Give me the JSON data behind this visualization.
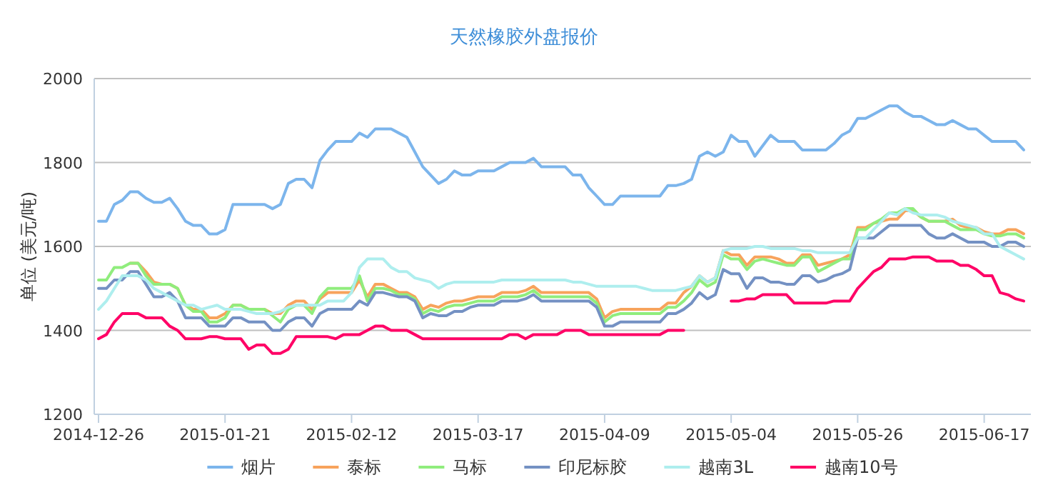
{
  "chart_data": {
    "type": "line",
    "title": "天然橡胶外盘报价",
    "ylabel": "单位 (美元/吨)",
    "categories": [
      "2014-12-26",
      null,
      null,
      null,
      null,
      null,
      null,
      null,
      null,
      null,
      null,
      null,
      null,
      null,
      null,
      null,
      "2015-01-21",
      null,
      null,
      null,
      null,
      null,
      null,
      null,
      null,
      null,
      null,
      null,
      null,
      null,
      null,
      null,
      "2015-02-12",
      null,
      null,
      null,
      null,
      null,
      null,
      null,
      null,
      null,
      null,
      null,
      null,
      null,
      null,
      null,
      "2015-03-17",
      null,
      null,
      null,
      null,
      null,
      null,
      null,
      null,
      null,
      null,
      null,
      null,
      null,
      null,
      null,
      "2015-04-09",
      null,
      null,
      null,
      null,
      null,
      null,
      null,
      null,
      null,
      null,
      null,
      null,
      null,
      null,
      null,
      "2015-05-04",
      null,
      null,
      null,
      null,
      null,
      null,
      null,
      null,
      null,
      null,
      null,
      null,
      null,
      null,
      null,
      "2015-05-26",
      null,
      null,
      null,
      null,
      null,
      null,
      null,
      null,
      null,
      null,
      null,
      null,
      null,
      null,
      null,
      "2015-06-17",
      null,
      null,
      null,
      null,
      null
    ],
    "ylim": [
      1200,
      2000
    ],
    "yticks": [
      1200,
      1400,
      1600,
      1800,
      2000
    ],
    "grid": "y",
    "legend": "bottom",
    "series": [
      {
        "name": "烟片",
        "color": "#7cb5ec",
        "values": [
          1660,
          1660,
          1700,
          1710,
          1730,
          1730,
          1715,
          1705,
          1705,
          1715,
          1690,
          1660,
          1650,
          1650,
          1630,
          1630,
          1640,
          1700,
          1700,
          1700,
          1700,
          1700,
          1690,
          1700,
          1750,
          1760,
          1760,
          1740,
          1805,
          1830,
          1850,
          1850,
          1850,
          1870,
          1860,
          1880,
          1880,
          1880,
          1870,
          1860,
          1825,
          1790,
          1770,
          1750,
          1760,
          1780,
          1770,
          1770,
          1780,
          1780,
          1780,
          1790,
          1800,
          1800,
          1800,
          1810,
          1790,
          1790,
          1790,
          1790,
          1770,
          1770,
          1740,
          1720,
          1700,
          1700,
          1720,
          1720,
          1720,
          1720,
          1720,
          1720,
          1745,
          1745,
          1750,
          1760,
          1815,
          1825,
          1815,
          1825,
          1865,
          1850,
          1850,
          1815,
          1840,
          1865,
          1850,
          1850,
          1850,
          1830,
          1830,
          1830,
          1830,
          1845,
          1865,
          1875,
          1905,
          1905,
          1915,
          1925,
          1935,
          1935,
          1920,
          1910,
          1910,
          1900,
          1890,
          1890,
          1900,
          1890,
          1880,
          1880,
          1865,
          1850,
          1850,
          1850,
          1850,
          1830
        ]
      },
      {
        "name": "泰标",
        "color": "#f7a35c",
        "values": [
          null,
          null,
          null,
          null,
          1560,
          1560,
          1540,
          1515,
          1510,
          1510,
          1500,
          1460,
          1450,
          1450,
          1430,
          1430,
          1440,
          1460,
          1460,
          1450,
          1450,
          1450,
          1440,
          1440,
          1460,
          1470,
          1470,
          1450,
          1475,
          1490,
          1490,
          1490,
          1490,
          1520,
          1480,
          1510,
          1510,
          1500,
          1490,
          1490,
          1480,
          1450,
          1460,
          1455,
          1465,
          1470,
          1470,
          1475,
          1480,
          1480,
          1480,
          1490,
          1490,
          1490,
          1495,
          1505,
          1490,
          1490,
          1490,
          1490,
          1490,
          1490,
          1490,
          1475,
          1430,
          1445,
          1450,
          1450,
          1450,
          1450,
          1450,
          1450,
          1465,
          1465,
          1490,
          1505,
          1530,
          1515,
          1525,
          1590,
          1580,
          1580,
          1555,
          1575,
          1575,
          1575,
          1570,
          1560,
          1560,
          1580,
          1580,
          1555,
          1560,
          1565,
          1570,
          1580,
          1645,
          1645,
          1655,
          1660,
          1665,
          1665,
          1685,
          1685,
          1670,
          1660,
          1660,
          1660,
          1665,
          1650,
          1645,
          1645,
          1635,
          1630,
          1630,
          1640,
          1640,
          1630
        ]
      },
      {
        "name": "马标",
        "color": "#90ed7d",
        "values": [
          1520,
          1520,
          1550,
          1550,
          1560,
          1560,
          1530,
          1510,
          1510,
          1510,
          1500,
          1460,
          1445,
          1445,
          1420,
          1420,
          1430,
          1460,
          1460,
          1450,
          1450,
          1450,
          1435,
          1420,
          1450,
          1460,
          1460,
          1440,
          1480,
          1500,
          1500,
          1500,
          1500,
          1530,
          1470,
          1500,
          1500,
          1495,
          1485,
          1485,
          1475,
          1440,
          1450,
          1445,
          1455,
          1460,
          1460,
          1465,
          1470,
          1470,
          1470,
          1480,
          1480,
          1480,
          1485,
          1495,
          1480,
          1480,
          1480,
          1480,
          1480,
          1480,
          1480,
          1465,
          1420,
          1435,
          1440,
          1440,
          1440,
          1440,
          1440,
          1440,
          1455,
          1455,
          1470,
          1490,
          1520,
          1505,
          1515,
          1580,
          1570,
          1570,
          1545,
          1565,
          1570,
          1565,
          1560,
          1555,
          1555,
          1575,
          1575,
          1540,
          1550,
          1560,
          1570,
          1570,
          1640,
          1640,
          1655,
          1665,
          1680,
          1680,
          1690,
          1690,
          1670,
          1660,
          1660,
          1660,
          1650,
          1640,
          1640,
          1640,
          1630,
          1625,
          1625,
          1630,
          1630,
          1620
        ]
      },
      {
        "name": "印尼标胶",
        "color": "#7491c3",
        "values": [
          1500,
          1500,
          1520,
          1520,
          1540,
          1540,
          1510,
          1480,
          1480,
          1490,
          1470,
          1430,
          1430,
          1430,
          1410,
          1410,
          1410,
          1430,
          1430,
          1420,
          1420,
          1420,
          1400,
          1400,
          1420,
          1430,
          1430,
          1410,
          1440,
          1450,
          1450,
          1450,
          1450,
          1470,
          1460,
          1490,
          1490,
          1485,
          1480,
          1480,
          1470,
          1430,
          1440,
          1435,
          1435,
          1445,
          1445,
          1455,
          1460,
          1460,
          1460,
          1470,
          1470,
          1470,
          1475,
          1485,
          1470,
          1470,
          1470,
          1470,
          1470,
          1470,
          1470,
          1455,
          1410,
          1410,
          1420,
          1420,
          1420,
          1420,
          1420,
          1420,
          1440,
          1440,
          1450,
          1465,
          1490,
          1475,
          1485,
          1545,
          1535,
          1535,
          1500,
          1525,
          1525,
          1515,
          1515,
          1510,
          1510,
          1530,
          1530,
          1515,
          1520,
          1530,
          1535,
          1545,
          1620,
          1620,
          1620,
          1635,
          1650,
          1650,
          1650,
          1650,
          1650,
          1630,
          1620,
          1620,
          1630,
          1620,
          1610,
          1610,
          1610,
          1600,
          1600,
          1610,
          1610,
          1600
        ]
      },
      {
        "name": "越南3L",
        "color": "#aeeeee",
        "values": [
          1450,
          1470,
          1500,
          1530,
          1530,
          1530,
          1520,
          1500,
          1490,
          1480,
          1470,
          1460,
          1460,
          1450,
          1455,
          1460,
          1450,
          1450,
          1450,
          1445,
          1440,
          1440,
          1440,
          1445,
          1455,
          1460,
          1460,
          1460,
          1460,
          1470,
          1470,
          1470,
          1490,
          1550,
          1570,
          1570,
          1570,
          1550,
          1540,
          1540,
          1525,
          1520,
          1515,
          1500,
          1510,
          1515,
          1515,
          1515,
          1515,
          1515,
          1515,
          1520,
          1520,
          1520,
          1520,
          1520,
          1520,
          1520,
          1520,
          1520,
          1515,
          1515,
          1510,
          1505,
          1505,
          1505,
          1505,
          1505,
          1505,
          1500,
          1495,
          1495,
          1495,
          1495,
          1500,
          1505,
          1530,
          1515,
          1525,
          1590,
          1595,
          1595,
          1595,
          1600,
          1600,
          1595,
          1595,
          1595,
          1595,
          1590,
          1590,
          1585,
          1585,
          1585,
          1585,
          1585,
          1620,
          1620,
          1640,
          1660,
          1680,
          1675,
          1690,
          1680,
          1675,
          1675,
          1675,
          1670,
          1660,
          1655,
          1650,
          1645,
          1630,
          1630,
          1600,
          1590,
          1580,
          1570
        ]
      },
      {
        "name": "越南10号",
        "color": "#ff0066",
        "values": [
          1380,
          1390,
          1420,
          1440,
          1440,
          1440,
          1430,
          1430,
          1430,
          1410,
          1400,
          1380,
          1380,
          1380,
          1385,
          1385,
          1380,
          1380,
          1380,
          1355,
          1365,
          1365,
          1345,
          1345,
          1355,
          1385,
          1385,
          1385,
          1385,
          1385,
          1380,
          1390,
          1390,
          1390,
          1400,
          1410,
          1410,
          1400,
          1400,
          1400,
          1390,
          1380,
          1380,
          1380,
          1380,
          1380,
          1380,
          1380,
          1380,
          1380,
          1380,
          1380,
          1390,
          1390,
          1380,
          1390,
          1390,
          1390,
          1390,
          1400,
          1400,
          1400,
          1390,
          1390,
          1390,
          1390,
          1390,
          1390,
          1390,
          1390,
          1390,
          1390,
          1400,
          1400,
          1400,
          null,
          null,
          null,
          null,
          null,
          1470,
          1470,
          1475,
          1475,
          1485,
          1485,
          1485,
          1485,
          1465,
          1465,
          1465,
          1465,
          1465,
          1470,
          1470,
          1470,
          1500,
          1520,
          1540,
          1550,
          1570,
          1570,
          1570,
          1575,
          1575,
          1575,
          1565,
          1565,
          1565,
          1555,
          1555,
          1545,
          1530,
          1530,
          1490,
          1485,
          1475,
          1470
        ]
      }
    ]
  }
}
